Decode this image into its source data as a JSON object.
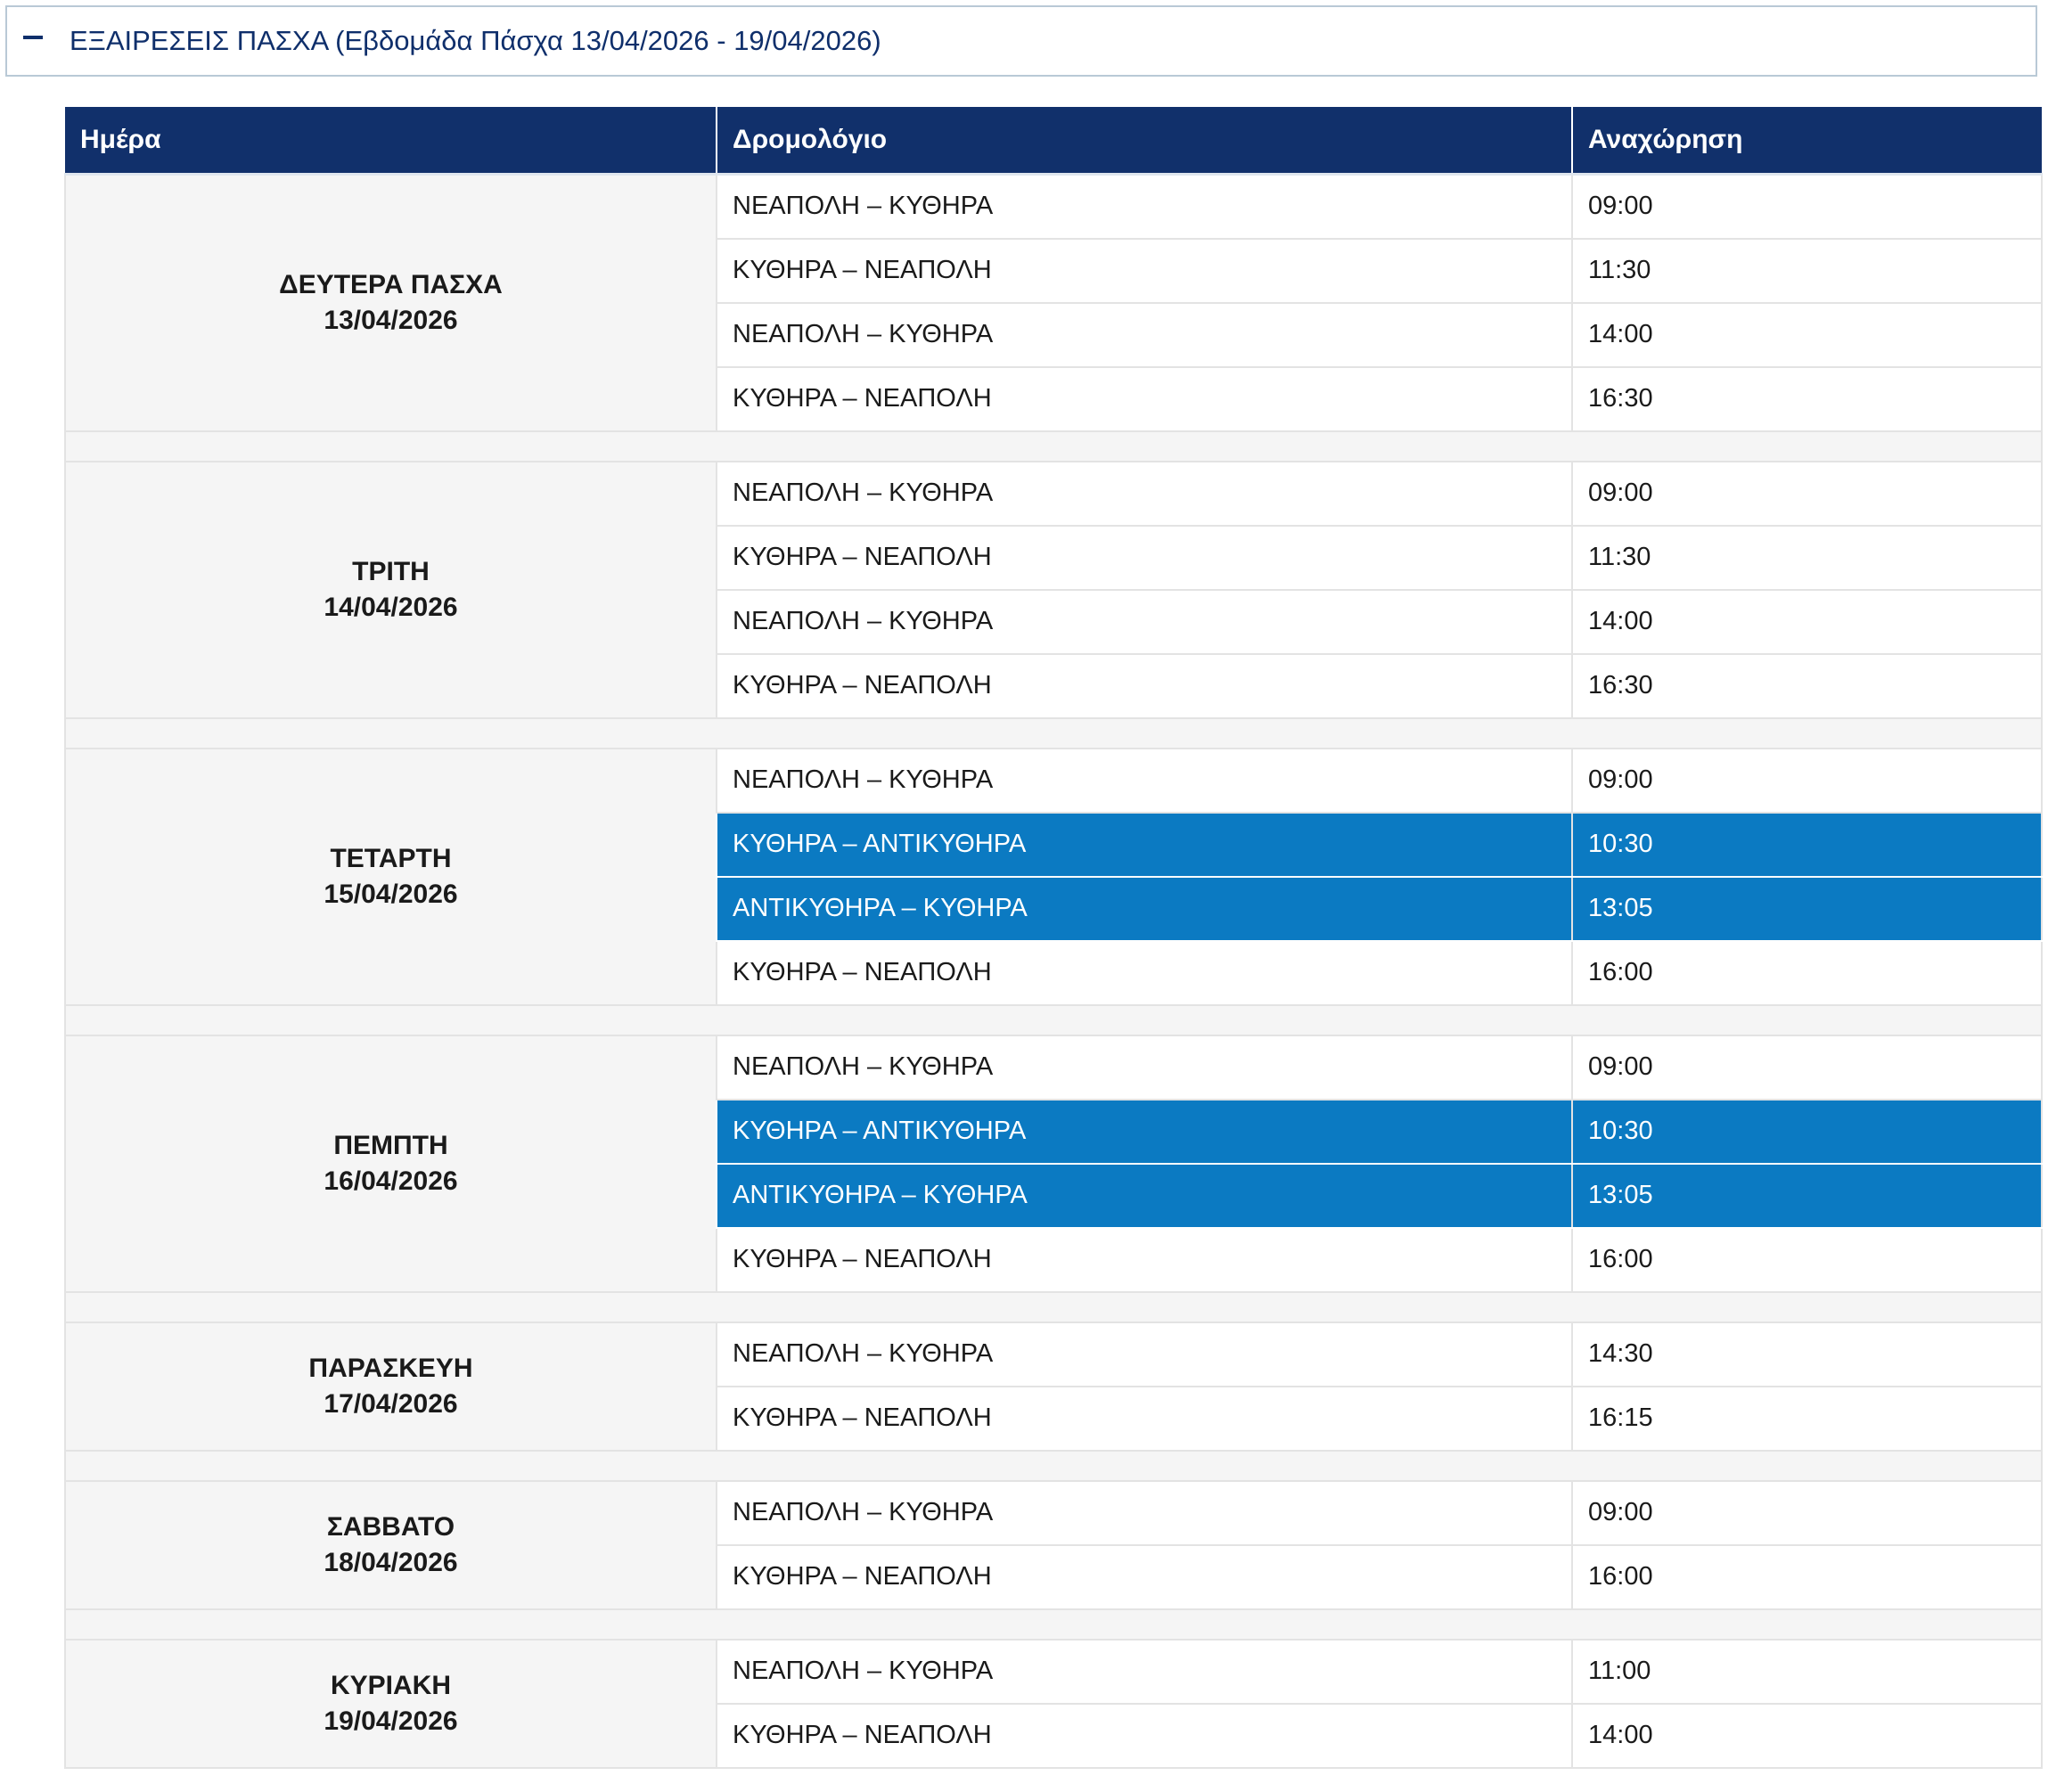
{
  "section": {
    "title": "ΕΞΑΙΡΕΣΕΙΣ ΠΑΣΧΑ (Εβδομάδα Πάσχα 13/04/2026 - 19/04/2026)",
    "icon": "minus-icon"
  },
  "table": {
    "headers": {
      "day": "Ημέρα",
      "route": "Δρομολόγιο",
      "departure": "Αναχώρηση"
    },
    "days": [
      {
        "name": "ΔΕΥΤΕΡΑ ΠΑΣΧΑ",
        "date": "13/04/2026",
        "trips": [
          {
            "route": "ΝΕΑΠΟΛΗ – ΚΥΘΗΡΑ",
            "time": "09:00",
            "highlight": false
          },
          {
            "route": "ΚΥΘΗΡΑ – ΝΕΑΠΟΛΗ",
            "time": "11:30",
            "highlight": false
          },
          {
            "route": "ΝΕΑΠΟΛΗ – ΚΥΘΗΡΑ",
            "time": "14:00",
            "highlight": false
          },
          {
            "route": "ΚΥΘΗΡΑ – ΝΕΑΠΟΛΗ",
            "time": "16:30",
            "highlight": false
          }
        ]
      },
      {
        "name": "ΤΡΙΤΗ",
        "date": "14/04/2026",
        "trips": [
          {
            "route": "ΝΕΑΠΟΛΗ – ΚΥΘΗΡΑ",
            "time": "09:00",
            "highlight": false
          },
          {
            "route": "ΚΥΘΗΡΑ – ΝΕΑΠΟΛΗ",
            "time": "11:30",
            "highlight": false
          },
          {
            "route": "ΝΕΑΠΟΛΗ – ΚΥΘΗΡΑ",
            "time": "14:00",
            "highlight": false
          },
          {
            "route": "ΚΥΘΗΡΑ – ΝΕΑΠΟΛΗ",
            "time": "16:30",
            "highlight": false
          }
        ]
      },
      {
        "name": "ΤΕΤΑΡΤΗ",
        "date": "15/04/2026",
        "trips": [
          {
            "route": "ΝΕΑΠΟΛΗ – ΚΥΘΗΡΑ",
            "time": "09:00",
            "highlight": false
          },
          {
            "route": "ΚΥΘΗΡΑ – ΑΝΤΙΚΥΘΗΡΑ",
            "time": "10:30",
            "highlight": true
          },
          {
            "route": "ΑΝΤΙΚΥΘΗΡΑ – ΚΥΘΗΡΑ",
            "time": "13:05",
            "highlight": true
          },
          {
            "route": "ΚΥΘΗΡΑ – ΝΕΑΠΟΛΗ",
            "time": "16:00",
            "highlight": false
          }
        ]
      },
      {
        "name": "ΠΕΜΠΤΗ",
        "date": "16/04/2026",
        "trips": [
          {
            "route": "ΝΕΑΠΟΛΗ – ΚΥΘΗΡΑ",
            "time": "09:00",
            "highlight": false
          },
          {
            "route": "ΚΥΘΗΡΑ – ΑΝΤΙΚΥΘΗΡΑ",
            "time": "10:30",
            "highlight": true
          },
          {
            "route": "ΑΝΤΙΚΥΘΗΡΑ – ΚΥΘΗΡΑ",
            "time": "13:05",
            "highlight": true
          },
          {
            "route": "ΚΥΘΗΡΑ – ΝΕΑΠΟΛΗ",
            "time": "16:00",
            "highlight": false
          }
        ]
      },
      {
        "name": "ΠΑΡΑΣΚΕΥΗ",
        "date": "17/04/2026",
        "trips": [
          {
            "route": "ΝΕΑΠΟΛΗ – ΚΥΘΗΡΑ",
            "time": "14:30",
            "highlight": false
          },
          {
            "route": "ΚΥΘΗΡΑ – ΝΕΑΠΟΛΗ",
            "time": "16:15",
            "highlight": false
          }
        ]
      },
      {
        "name": "ΣΑΒΒΑΤΟ",
        "date": "18/04/2026",
        "trips": [
          {
            "route": "ΝΕΑΠΟΛΗ – ΚΥΘΗΡΑ",
            "time": "09:00",
            "highlight": false
          },
          {
            "route": "ΚΥΘΗΡΑ – ΝΕΑΠΟΛΗ",
            "time": "16:00",
            "highlight": false
          }
        ]
      },
      {
        "name": "ΚΥΡΙΑΚΗ",
        "date": "19/04/2026",
        "trips": [
          {
            "route": "ΝΕΑΠΟΛΗ – ΚΥΘΗΡΑ",
            "time": "11:00",
            "highlight": false
          },
          {
            "route": "ΚΥΘΗΡΑ – ΝΕΑΠΟΛΗ",
            "time": "14:00",
            "highlight": false
          }
        ]
      }
    ]
  },
  "colors": {
    "header_bg": "#11306b",
    "highlight_bg": "#0b7ac2",
    "day_cell_bg": "#f5f5f5",
    "title_color": "#0f2f6b"
  }
}
